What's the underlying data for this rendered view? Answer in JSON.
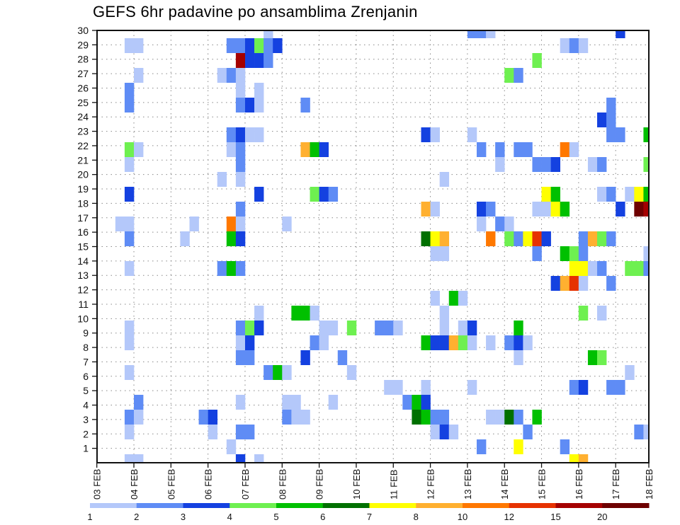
{
  "chart_data": {
    "type": "heatmap",
    "title": "GEFS 6hr padavine po ansamblima Zrenjanin",
    "xlabel": "",
    "ylabel": "",
    "x_unit": "6-hour step since 03 FEB",
    "x_steps": 60,
    "x_tick_labels": [
      "03 FEB",
      "04 FEB",
      "05 FEB",
      "06 FEB",
      "07 FEB",
      "08 FEB",
      "09 FEB",
      "10 FEB",
      "11 FEB",
      "12 FEB",
      "13 FEB",
      "14 FEB",
      "15 FEB",
      "16 FEB",
      "17 FEB",
      "18 FEB"
    ],
    "y_tick_labels": [
      "1",
      "2",
      "3",
      "4",
      "5",
      "6",
      "7",
      "8",
      "9",
      "10",
      "11",
      "12",
      "13",
      "14",
      "15",
      "16",
      "17",
      "18",
      "19",
      "20",
      "21",
      "22",
      "23",
      "24",
      "25",
      "26",
      "27",
      "28",
      "29",
      "30"
    ],
    "ylim": [
      0,
      30
    ],
    "grid": true,
    "legend": {
      "placement": "bottom",
      "levels": [
        "1",
        "2",
        "3",
        "4",
        "5",
        "6",
        "7",
        "8",
        "10",
        "12",
        "15",
        "20"
      ],
      "colors": [
        "#b4c8fa",
        "#5f8cf5",
        "#1441e0",
        "#6ef050",
        "#00c000",
        "#007000",
        "#ffff00",
        "#ffb030",
        "#ff7800",
        "#e63200",
        "#a50000",
        "#6e0000"
      ]
    },
    "cells_format": [
      "step",
      "member",
      "color_bin"
    ],
    "cells": [
      [
        18,
        30,
        1
      ],
      [
        40,
        30,
        2
      ],
      [
        41,
        30,
        2
      ],
      [
        42,
        30,
        1
      ],
      [
        56,
        30,
        3
      ],
      [
        3,
        29,
        1
      ],
      [
        4,
        29,
        1
      ],
      [
        14,
        29,
        2
      ],
      [
        15,
        29,
        2
      ],
      [
        16,
        29,
        3
      ],
      [
        17,
        29,
        4
      ],
      [
        18,
        29,
        2
      ],
      [
        19,
        29,
        3
      ],
      [
        50,
        29,
        1
      ],
      [
        51,
        29,
        2
      ],
      [
        52,
        29,
        1
      ],
      [
        15,
        28,
        11
      ],
      [
        16,
        28,
        3
      ],
      [
        17,
        28,
        3
      ],
      [
        18,
        28,
        2
      ],
      [
        47,
        28,
        4
      ],
      [
        4,
        27,
        1
      ],
      [
        13,
        27,
        1
      ],
      [
        14,
        27,
        2
      ],
      [
        15,
        27,
        1
      ],
      [
        44,
        27,
        4
      ],
      [
        45,
        27,
        2
      ],
      [
        3,
        26,
        2
      ],
      [
        15,
        26,
        1
      ],
      [
        17,
        26,
        1
      ],
      [
        3,
        25,
        2
      ],
      [
        15,
        25,
        2
      ],
      [
        16,
        25,
        3
      ],
      [
        17,
        25,
        1
      ],
      [
        22,
        25,
        2
      ],
      [
        55,
        25,
        2
      ],
      [
        54,
        24,
        3
      ],
      [
        55,
        24,
        2
      ],
      [
        14,
        23,
        2
      ],
      [
        15,
        23,
        3
      ],
      [
        16,
        23,
        1
      ],
      [
        17,
        23,
        1
      ],
      [
        35,
        23,
        3
      ],
      [
        36,
        23,
        1
      ],
      [
        40,
        23,
        1
      ],
      [
        55,
        23,
        2
      ],
      [
        56,
        23,
        2
      ],
      [
        59,
        23,
        5
      ],
      [
        3,
        22,
        4
      ],
      [
        4,
        22,
        1
      ],
      [
        14,
        22,
        1
      ],
      [
        15,
        22,
        2
      ],
      [
        22,
        22,
        8
      ],
      [
        23,
        22,
        5
      ],
      [
        24,
        22,
        3
      ],
      [
        41,
        22,
        2
      ],
      [
        43,
        22,
        2
      ],
      [
        45,
        22,
        2
      ],
      [
        46,
        22,
        2
      ],
      [
        50,
        22,
        9
      ],
      [
        51,
        22,
        1
      ],
      [
        3,
        21,
        1
      ],
      [
        15,
        21,
        2
      ],
      [
        43,
        21,
        1
      ],
      [
        47,
        21,
        2
      ],
      [
        48,
        21,
        2
      ],
      [
        49,
        21,
        3
      ],
      [
        53,
        21,
        1
      ],
      [
        54,
        21,
        2
      ],
      [
        59,
        21,
        4
      ],
      [
        13,
        20,
        1
      ],
      [
        15,
        20,
        1
      ],
      [
        37,
        20,
        1
      ],
      [
        3,
        19,
        3
      ],
      [
        17,
        19,
        3
      ],
      [
        23,
        19,
        4
      ],
      [
        24,
        19,
        3
      ],
      [
        25,
        19,
        2
      ],
      [
        48,
        19,
        7
      ],
      [
        49,
        19,
        5
      ],
      [
        54,
        19,
        1
      ],
      [
        55,
        19,
        2
      ],
      [
        57,
        19,
        1
      ],
      [
        58,
        19,
        7
      ],
      [
        59,
        19,
        5
      ],
      [
        15,
        18,
        2
      ],
      [
        35,
        18,
        8
      ],
      [
        36,
        18,
        1
      ],
      [
        41,
        18,
        3
      ],
      [
        42,
        18,
        2
      ],
      [
        47,
        18,
        1
      ],
      [
        48,
        18,
        1
      ],
      [
        49,
        18,
        7
      ],
      [
        50,
        18,
        5
      ],
      [
        56,
        18,
        3
      ],
      [
        58,
        18,
        12
      ],
      [
        59,
        18,
        11
      ],
      [
        2,
        17,
        1
      ],
      [
        3,
        17,
        1
      ],
      [
        10,
        17,
        1
      ],
      [
        14,
        17,
        9
      ],
      [
        15,
        17,
        1
      ],
      [
        20,
        17,
        1
      ],
      [
        41,
        17,
        1
      ],
      [
        43,
        17,
        2
      ],
      [
        44,
        17,
        1
      ],
      [
        3,
        16,
        2
      ],
      [
        9,
        16,
        1
      ],
      [
        14,
        16,
        5
      ],
      [
        15,
        16,
        3
      ],
      [
        35,
        16,
        6
      ],
      [
        36,
        16,
        7
      ],
      [
        37,
        16,
        8
      ],
      [
        42,
        16,
        9
      ],
      [
        44,
        16,
        4
      ],
      [
        45,
        16,
        2
      ],
      [
        46,
        16,
        7
      ],
      [
        47,
        16,
        10
      ],
      [
        48,
        16,
        3
      ],
      [
        52,
        16,
        2
      ],
      [
        53,
        16,
        8
      ],
      [
        54,
        16,
        4
      ],
      [
        55,
        16,
        2
      ],
      [
        36,
        15,
        1
      ],
      [
        37,
        15,
        1
      ],
      [
        47,
        15,
        2
      ],
      [
        50,
        15,
        5
      ],
      [
        51,
        15,
        4
      ],
      [
        52,
        15,
        2
      ],
      [
        59,
        15,
        1
      ],
      [
        3,
        14,
        1
      ],
      [
        13,
        14,
        2
      ],
      [
        14,
        14,
        5
      ],
      [
        15,
        14,
        2
      ],
      [
        51,
        14,
        7
      ],
      [
        52,
        14,
        7
      ],
      [
        53,
        14,
        1
      ],
      [
        54,
        14,
        2
      ],
      [
        57,
        14,
        4
      ],
      [
        58,
        14,
        4
      ],
      [
        59,
        14,
        2
      ],
      [
        49,
        13,
        3
      ],
      [
        50,
        13,
        8
      ],
      [
        51,
        13,
        10
      ],
      [
        52,
        13,
        1
      ],
      [
        55,
        13,
        2
      ],
      [
        36,
        12,
        1
      ],
      [
        38,
        12,
        5
      ],
      [
        39,
        12,
        1
      ],
      [
        17,
        11,
        1
      ],
      [
        21,
        11,
        5
      ],
      [
        22,
        11,
        5
      ],
      [
        23,
        11,
        1
      ],
      [
        37,
        11,
        1
      ],
      [
        52,
        11,
        4
      ],
      [
        54,
        11,
        1
      ],
      [
        3,
        10,
        1
      ],
      [
        15,
        10,
        2
      ],
      [
        16,
        10,
        4
      ],
      [
        17,
        10,
        3
      ],
      [
        24,
        10,
        1
      ],
      [
        25,
        10,
        1
      ],
      [
        27,
        10,
        4
      ],
      [
        30,
        10,
        2
      ],
      [
        31,
        10,
        2
      ],
      [
        32,
        10,
        1
      ],
      [
        37,
        10,
        1
      ],
      [
        39,
        10,
        1
      ],
      [
        40,
        10,
        3
      ],
      [
        45,
        10,
        5
      ],
      [
        3,
        9,
        1
      ],
      [
        15,
        9,
        1
      ],
      [
        16,
        9,
        3
      ],
      [
        23,
        9,
        2
      ],
      [
        24,
        9,
        1
      ],
      [
        35,
        9,
        5
      ],
      [
        36,
        9,
        3
      ],
      [
        37,
        9,
        3
      ],
      [
        38,
        9,
        8
      ],
      [
        39,
        9,
        4
      ],
      [
        40,
        9,
        1
      ],
      [
        42,
        9,
        1
      ],
      [
        44,
        9,
        2
      ],
      [
        45,
        9,
        3
      ],
      [
        46,
        9,
        1
      ],
      [
        15,
        8,
        2
      ],
      [
        16,
        8,
        2
      ],
      [
        22,
        8,
        3
      ],
      [
        26,
        8,
        2
      ],
      [
        45,
        8,
        1
      ],
      [
        53,
        8,
        5
      ],
      [
        54,
        8,
        4
      ],
      [
        3,
        7,
        1
      ],
      [
        18,
        7,
        2
      ],
      [
        19,
        7,
        5
      ],
      [
        20,
        7,
        1
      ],
      [
        27,
        7,
        1
      ],
      [
        57,
        7,
        1
      ],
      [
        31,
        6,
        1
      ],
      [
        32,
        6,
        1
      ],
      [
        35,
        6,
        1
      ],
      [
        40,
        6,
        1
      ],
      [
        51,
        6,
        2
      ],
      [
        52,
        6,
        3
      ],
      [
        55,
        6,
        2
      ],
      [
        56,
        6,
        2
      ],
      [
        4,
        5,
        2
      ],
      [
        15,
        5,
        1
      ],
      [
        20,
        5,
        1
      ],
      [
        21,
        5,
        1
      ],
      [
        25,
        5,
        1
      ],
      [
        33,
        5,
        2
      ],
      [
        34,
        5,
        5
      ],
      [
        35,
        5,
        3
      ],
      [
        3,
        4,
        2
      ],
      [
        4,
        4,
        1
      ],
      [
        11,
        4,
        2
      ],
      [
        12,
        4,
        3
      ],
      [
        20,
        4,
        2
      ],
      [
        21,
        4,
        1
      ],
      [
        22,
        4,
        1
      ],
      [
        34,
        4,
        6
      ],
      [
        35,
        4,
        5
      ],
      [
        36,
        4,
        2
      ],
      [
        37,
        4,
        2
      ],
      [
        42,
        4,
        1
      ],
      [
        43,
        4,
        1
      ],
      [
        44,
        4,
        6
      ],
      [
        45,
        4,
        2
      ],
      [
        47,
        4,
        5
      ],
      [
        3,
        3,
        1
      ],
      [
        12,
        3,
        1
      ],
      [
        15,
        3,
        2
      ],
      [
        16,
        3,
        2
      ],
      [
        36,
        3,
        1
      ],
      [
        37,
        3,
        3
      ],
      [
        38,
        3,
        1
      ],
      [
        46,
        3,
        2
      ],
      [
        58,
        3,
        2
      ],
      [
        59,
        3,
        1
      ],
      [
        14,
        2,
        1
      ],
      [
        41,
        2,
        2
      ],
      [
        45,
        2,
        7
      ],
      [
        50,
        2,
        2
      ],
      [
        3,
        1,
        1
      ],
      [
        4,
        1,
        1
      ],
      [
        15,
        1,
        3
      ],
      [
        17,
        1,
        1
      ],
      [
        51,
        1,
        7
      ],
      [
        52,
        1,
        8
      ]
    ]
  }
}
